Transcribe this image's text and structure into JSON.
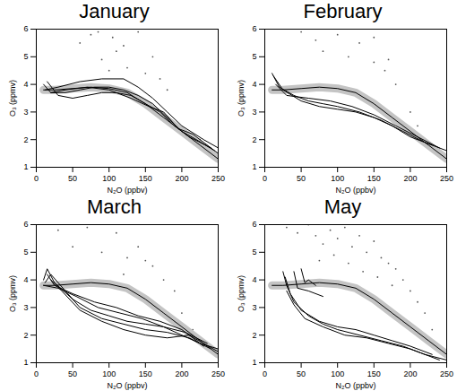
{
  "chart_data": [
    {
      "type": "line",
      "title": "January",
      "x_label": "N₂O (ppbv)",
      "y_label": "O₃ (ppmv)",
      "xlim": [
        0,
        250
      ],
      "xticks": [
        0,
        50,
        100,
        150,
        200,
        250
      ],
      "ylim": [
        1,
        6
      ],
      "yticks": [
        1,
        2,
        3,
        4,
        5,
        6
      ],
      "grid": false,
      "series": [
        {
          "type": "scatter",
          "color": "#555555",
          "marker": "dot",
          "x": [
            60,
            75,
            90,
            105,
            110,
            125,
            140,
            150,
            160,
            170,
            180,
            195,
            205,
            215,
            225,
            235,
            240,
            120,
            100,
            85
          ],
          "values": [
            5.5,
            5.8,
            4.9,
            5.7,
            5.2,
            4.6,
            5.9,
            4.4,
            5.0,
            4.2,
            3.8,
            2.4,
            2.1,
            1.9,
            2.0,
            1.6,
            1.5,
            5.4,
            4.5,
            5.9
          ]
        },
        {
          "type": "line",
          "color": "#c4c4c4",
          "line_style": "band",
          "x": [
            10,
            25,
            50,
            75,
            100,
            125,
            150,
            175,
            200,
            225,
            250
          ],
          "values": [
            3.8,
            3.8,
            3.85,
            3.9,
            3.85,
            3.7,
            3.3,
            2.8,
            2.3,
            1.8,
            1.3
          ]
        },
        {
          "type": "line",
          "color": "#000000",
          "line_style": "solid",
          "x": [
            10,
            25,
            50,
            75,
            100,
            125,
            150,
            175,
            200,
            225,
            250
          ],
          "values": [
            3.8,
            3.8,
            3.85,
            3.9,
            3.85,
            3.7,
            3.3,
            2.8,
            2.3,
            1.8,
            1.3
          ]
        },
        {
          "type": "line",
          "color": "#000000",
          "line_style": "solid",
          "x": [
            10,
            20,
            40,
            60,
            80,
            100,
            120,
            140,
            160,
            180,
            200,
            220,
            245
          ],
          "values": [
            4.0,
            3.7,
            3.7,
            3.8,
            3.9,
            3.9,
            3.8,
            3.6,
            3.3,
            2.8,
            2.3,
            2.0,
            1.6
          ]
        },
        {
          "type": "line",
          "color": "#000000",
          "line_style": "solid",
          "x": [
            15,
            30,
            50,
            70,
            90,
            110,
            130,
            150,
            170,
            190,
            210,
            240
          ],
          "values": [
            4.1,
            3.6,
            3.5,
            3.6,
            3.7,
            3.7,
            3.6,
            3.3,
            3.0,
            2.5,
            2.1,
            1.7
          ]
        },
        {
          "type": "line",
          "color": "#000000",
          "line_style": "solid",
          "x": [
            12,
            30,
            60,
            90,
            120,
            140,
            160,
            180,
            200,
            230,
            250
          ],
          "values": [
            3.8,
            3.9,
            4.1,
            4.2,
            4.2,
            3.9,
            3.5,
            3.0,
            2.5,
            2.0,
            1.7
          ]
        },
        {
          "type": "line",
          "color": "#000000",
          "line_style": "solid",
          "x": [
            20,
            40,
            70,
            100,
            130,
            155,
            175,
            195,
            215,
            250
          ],
          "values": [
            3.7,
            3.8,
            3.9,
            3.8,
            3.5,
            3.2,
            3.0,
            2.4,
            2.2,
            1.5
          ]
        }
      ]
    },
    {
      "type": "line",
      "title": "February",
      "x_label": "N₂O (ppbv)",
      "y_label": "O₃ (ppmv)",
      "xlim": [
        0,
        250
      ],
      "xticks": [
        0,
        50,
        100,
        150,
        200,
        250
      ],
      "ylim": [
        1,
        6
      ],
      "yticks": [
        1,
        2,
        3,
        4,
        5,
        6
      ],
      "grid": false,
      "series": [
        {
          "type": "scatter",
          "color": "#555555",
          "marker": "dot",
          "x": [
            50,
            70,
            80,
            100,
            115,
            130,
            150,
            165,
            180,
            200,
            210,
            220,
            230,
            240,
            245,
            150,
            170
          ],
          "values": [
            5.9,
            5.6,
            5.2,
            5.8,
            5.0,
            5.5,
            4.8,
            4.5,
            4.0,
            3.0,
            2.5,
            1.9,
            1.7,
            1.5,
            1.3,
            5.7,
            4.9
          ]
        },
        {
          "type": "line",
          "color": "#c4c4c4",
          "line_style": "band",
          "x": [
            10,
            25,
            50,
            75,
            100,
            125,
            150,
            175,
            200,
            225,
            250
          ],
          "values": [
            3.8,
            3.8,
            3.85,
            3.9,
            3.85,
            3.7,
            3.3,
            2.8,
            2.3,
            1.8,
            1.3
          ]
        },
        {
          "type": "line",
          "color": "#000000",
          "line_style": "solid",
          "x": [
            10,
            25,
            50,
            75,
            100,
            125,
            150,
            175,
            200,
            225,
            250
          ],
          "values": [
            3.8,
            3.8,
            3.85,
            3.9,
            3.85,
            3.7,
            3.3,
            2.8,
            2.3,
            1.8,
            1.3
          ]
        },
        {
          "type": "line",
          "color": "#000000",
          "line_style": "solid",
          "x": [
            10,
            20,
            40,
            60,
            80,
            100,
            130,
            160,
            190,
            220,
            250
          ],
          "values": [
            4.4,
            3.9,
            3.6,
            3.4,
            3.3,
            3.2,
            3.0,
            2.7,
            2.3,
            1.9,
            1.6
          ]
        },
        {
          "type": "line",
          "color": "#000000",
          "line_style": "solid",
          "x": [
            12,
            25,
            50,
            75,
            100,
            125,
            150,
            175,
            200,
            230
          ],
          "values": [
            4.3,
            3.8,
            3.4,
            3.2,
            3.1,
            3.0,
            2.8,
            2.5,
            2.1,
            1.8
          ]
        },
        {
          "type": "line",
          "color": "#000000",
          "line_style": "solid",
          "x": [
            15,
            30,
            60,
            90,
            120,
            150,
            180,
            210,
            240
          ],
          "values": [
            4.0,
            3.6,
            3.5,
            3.4,
            3.2,
            2.9,
            2.5,
            2.1,
            1.7
          ]
        }
      ]
    },
    {
      "type": "line",
      "title": "March",
      "x_label": "N₂O (ppbv)",
      "y_label": "O₃ (ppmv)",
      "xlim": [
        0,
        250
      ],
      "xticks": [
        0,
        50,
        100,
        150,
        200,
        250
      ],
      "ylim": [
        1,
        6
      ],
      "yticks": [
        1,
        2,
        3,
        4,
        5,
        6
      ],
      "grid": false,
      "series": [
        {
          "type": "scatter",
          "color": "#555555",
          "marker": "dot",
          "x": [
            30,
            50,
            70,
            90,
            110,
            125,
            140,
            160,
            175,
            190,
            200,
            215,
            225,
            240,
            120,
            150
          ],
          "values": [
            5.8,
            5.2,
            5.9,
            5.0,
            5.7,
            4.8,
            5.2,
            4.5,
            4.0,
            3.6,
            2.8,
            2.2,
            1.9,
            1.5,
            4.2,
            4.7
          ]
        },
        {
          "type": "line",
          "color": "#c4c4c4",
          "line_style": "band",
          "x": [
            10,
            25,
            50,
            75,
            100,
            125,
            150,
            175,
            200,
            225,
            250
          ],
          "values": [
            3.8,
            3.8,
            3.85,
            3.9,
            3.85,
            3.7,
            3.3,
            2.8,
            2.3,
            1.8,
            1.3
          ]
        },
        {
          "type": "line",
          "color": "#000000",
          "line_style": "solid",
          "x": [
            10,
            25,
            50,
            75,
            100,
            125,
            150,
            175,
            200,
            225,
            250
          ],
          "values": [
            3.8,
            3.8,
            3.85,
            3.9,
            3.85,
            3.7,
            3.3,
            2.8,
            2.3,
            1.8,
            1.3
          ]
        },
        {
          "type": "line",
          "color": "#000000",
          "line_style": "solid",
          "x": [
            10,
            15,
            25,
            50,
            75,
            100,
            125,
            150,
            175,
            200,
            225,
            250
          ],
          "values": [
            4.0,
            4.4,
            3.9,
            3.3,
            2.9,
            2.7,
            2.5,
            2.4,
            2.3,
            2.0,
            1.7,
            1.5
          ]
        },
        {
          "type": "line",
          "color": "#000000",
          "line_style": "solid",
          "x": [
            12,
            20,
            40,
            60,
            90,
            120,
            150,
            180,
            210,
            240
          ],
          "values": [
            3.9,
            4.2,
            3.6,
            3.0,
            2.6,
            2.4,
            2.2,
            2.1,
            1.9,
            1.5
          ]
        },
        {
          "type": "line",
          "color": "#000000",
          "line_style": "solid",
          "x": [
            15,
            25,
            50,
            80,
            110,
            140,
            170,
            200,
            230
          ],
          "values": [
            4.2,
            3.8,
            3.5,
            3.2,
            3.0,
            2.7,
            2.5,
            2.2,
            1.6
          ]
        },
        {
          "type": "line",
          "color": "#000000",
          "line_style": "solid",
          "x": [
            20,
            35,
            60,
            90,
            120,
            150,
            180,
            210,
            250
          ],
          "values": [
            4.0,
            3.6,
            2.9,
            2.5,
            2.2,
            2.0,
            1.9,
            2.0,
            1.4
          ]
        },
        {
          "type": "line",
          "color": "#000000",
          "line_style": "solid",
          "x": [
            10,
            30,
            55,
            85,
            115,
            145,
            175,
            205,
            235
          ],
          "values": [
            3.8,
            3.7,
            3.4,
            3.0,
            2.8,
            2.6,
            2.3,
            2.1,
            1.7
          ]
        }
      ]
    },
    {
      "type": "line",
      "title": "May",
      "x_label": "N₂O (ppbv)",
      "y_label": "O₃ (ppmv)",
      "xlim": [
        0,
        250
      ],
      "xticks": [
        0,
        50,
        100,
        150,
        200,
        250
      ],
      "ylim": [
        1,
        6
      ],
      "yticks": [
        1,
        2,
        3,
        4,
        5,
        6
      ],
      "grid": false,
      "series": [
        {
          "type": "scatter",
          "color": "#555555",
          "marker": "dot",
          "x": [
            30,
            45,
            60,
            70,
            80,
            90,
            100,
            110,
            120,
            130,
            140,
            150,
            160,
            170,
            180,
            190,
            200,
            210,
            220,
            230,
            240,
            75,
            95,
            115,
            135,
            155,
            175
          ],
          "values": [
            5.9,
            5.7,
            6.0,
            5.6,
            5.3,
            5.8,
            5.5,
            5.9,
            5.2,
            5.6,
            5.0,
            5.4,
            4.8,
            4.6,
            4.4,
            4.0,
            3.6,
            3.2,
            2.8,
            2.2,
            1.6,
            4.7,
            4.9,
            4.6,
            4.3,
            4.1,
            3.8
          ]
        },
        {
          "type": "line",
          "color": "#c4c4c4",
          "line_style": "band",
          "x": [
            10,
            25,
            50,
            75,
            100,
            125,
            150,
            175,
            200,
            225,
            250
          ],
          "values": [
            3.8,
            3.8,
            3.85,
            3.9,
            3.85,
            3.7,
            3.3,
            2.8,
            2.3,
            1.8,
            1.3
          ]
        },
        {
          "type": "line",
          "color": "#000000",
          "line_style": "solid",
          "x": [
            10,
            25,
            50,
            75,
            100,
            125,
            150,
            175,
            200,
            225,
            250
          ],
          "values": [
            3.8,
            3.8,
            3.85,
            3.9,
            3.85,
            3.7,
            3.3,
            2.8,
            2.3,
            1.8,
            1.3
          ]
        },
        {
          "type": "line",
          "color": "#000000",
          "line_style": "solid",
          "x": [
            25,
            30,
            40,
            60,
            80,
            100,
            130,
            160,
            190,
            220,
            250
          ],
          "values": [
            4.3,
            3.8,
            3.2,
            2.7,
            2.4,
            2.2,
            2.0,
            1.8,
            1.6,
            1.3,
            1.1
          ]
        },
        {
          "type": "line",
          "color": "#000000",
          "line_style": "solid",
          "x": [
            28,
            35,
            50,
            75,
            100,
            125,
            150,
            175,
            200,
            230
          ],
          "values": [
            4.1,
            3.5,
            2.9,
            2.5,
            2.3,
            2.2,
            2.0,
            1.8,
            1.6,
            1.3
          ]
        },
        {
          "type": "line",
          "color": "#000000",
          "line_style": "solid",
          "x": [
            30,
            40,
            55,
            80,
            110,
            140,
            170,
            200,
            240
          ],
          "values": [
            3.6,
            3.1,
            2.6,
            2.3,
            2.0,
            1.9,
            1.7,
            1.5,
            1.1
          ]
        },
        {
          "type": "line",
          "color": "#000000",
          "line_style": "solid",
          "x": [
            50,
            55,
            60,
            70
          ],
          "values": [
            4.4,
            3.9,
            4.0,
            3.8
          ]
        },
        {
          "type": "line",
          "color": "#000000",
          "line_style": "solid",
          "x": [
            40,
            45,
            60,
            80
          ],
          "values": [
            4.3,
            3.7,
            3.6,
            3.4
          ]
        }
      ]
    }
  ]
}
